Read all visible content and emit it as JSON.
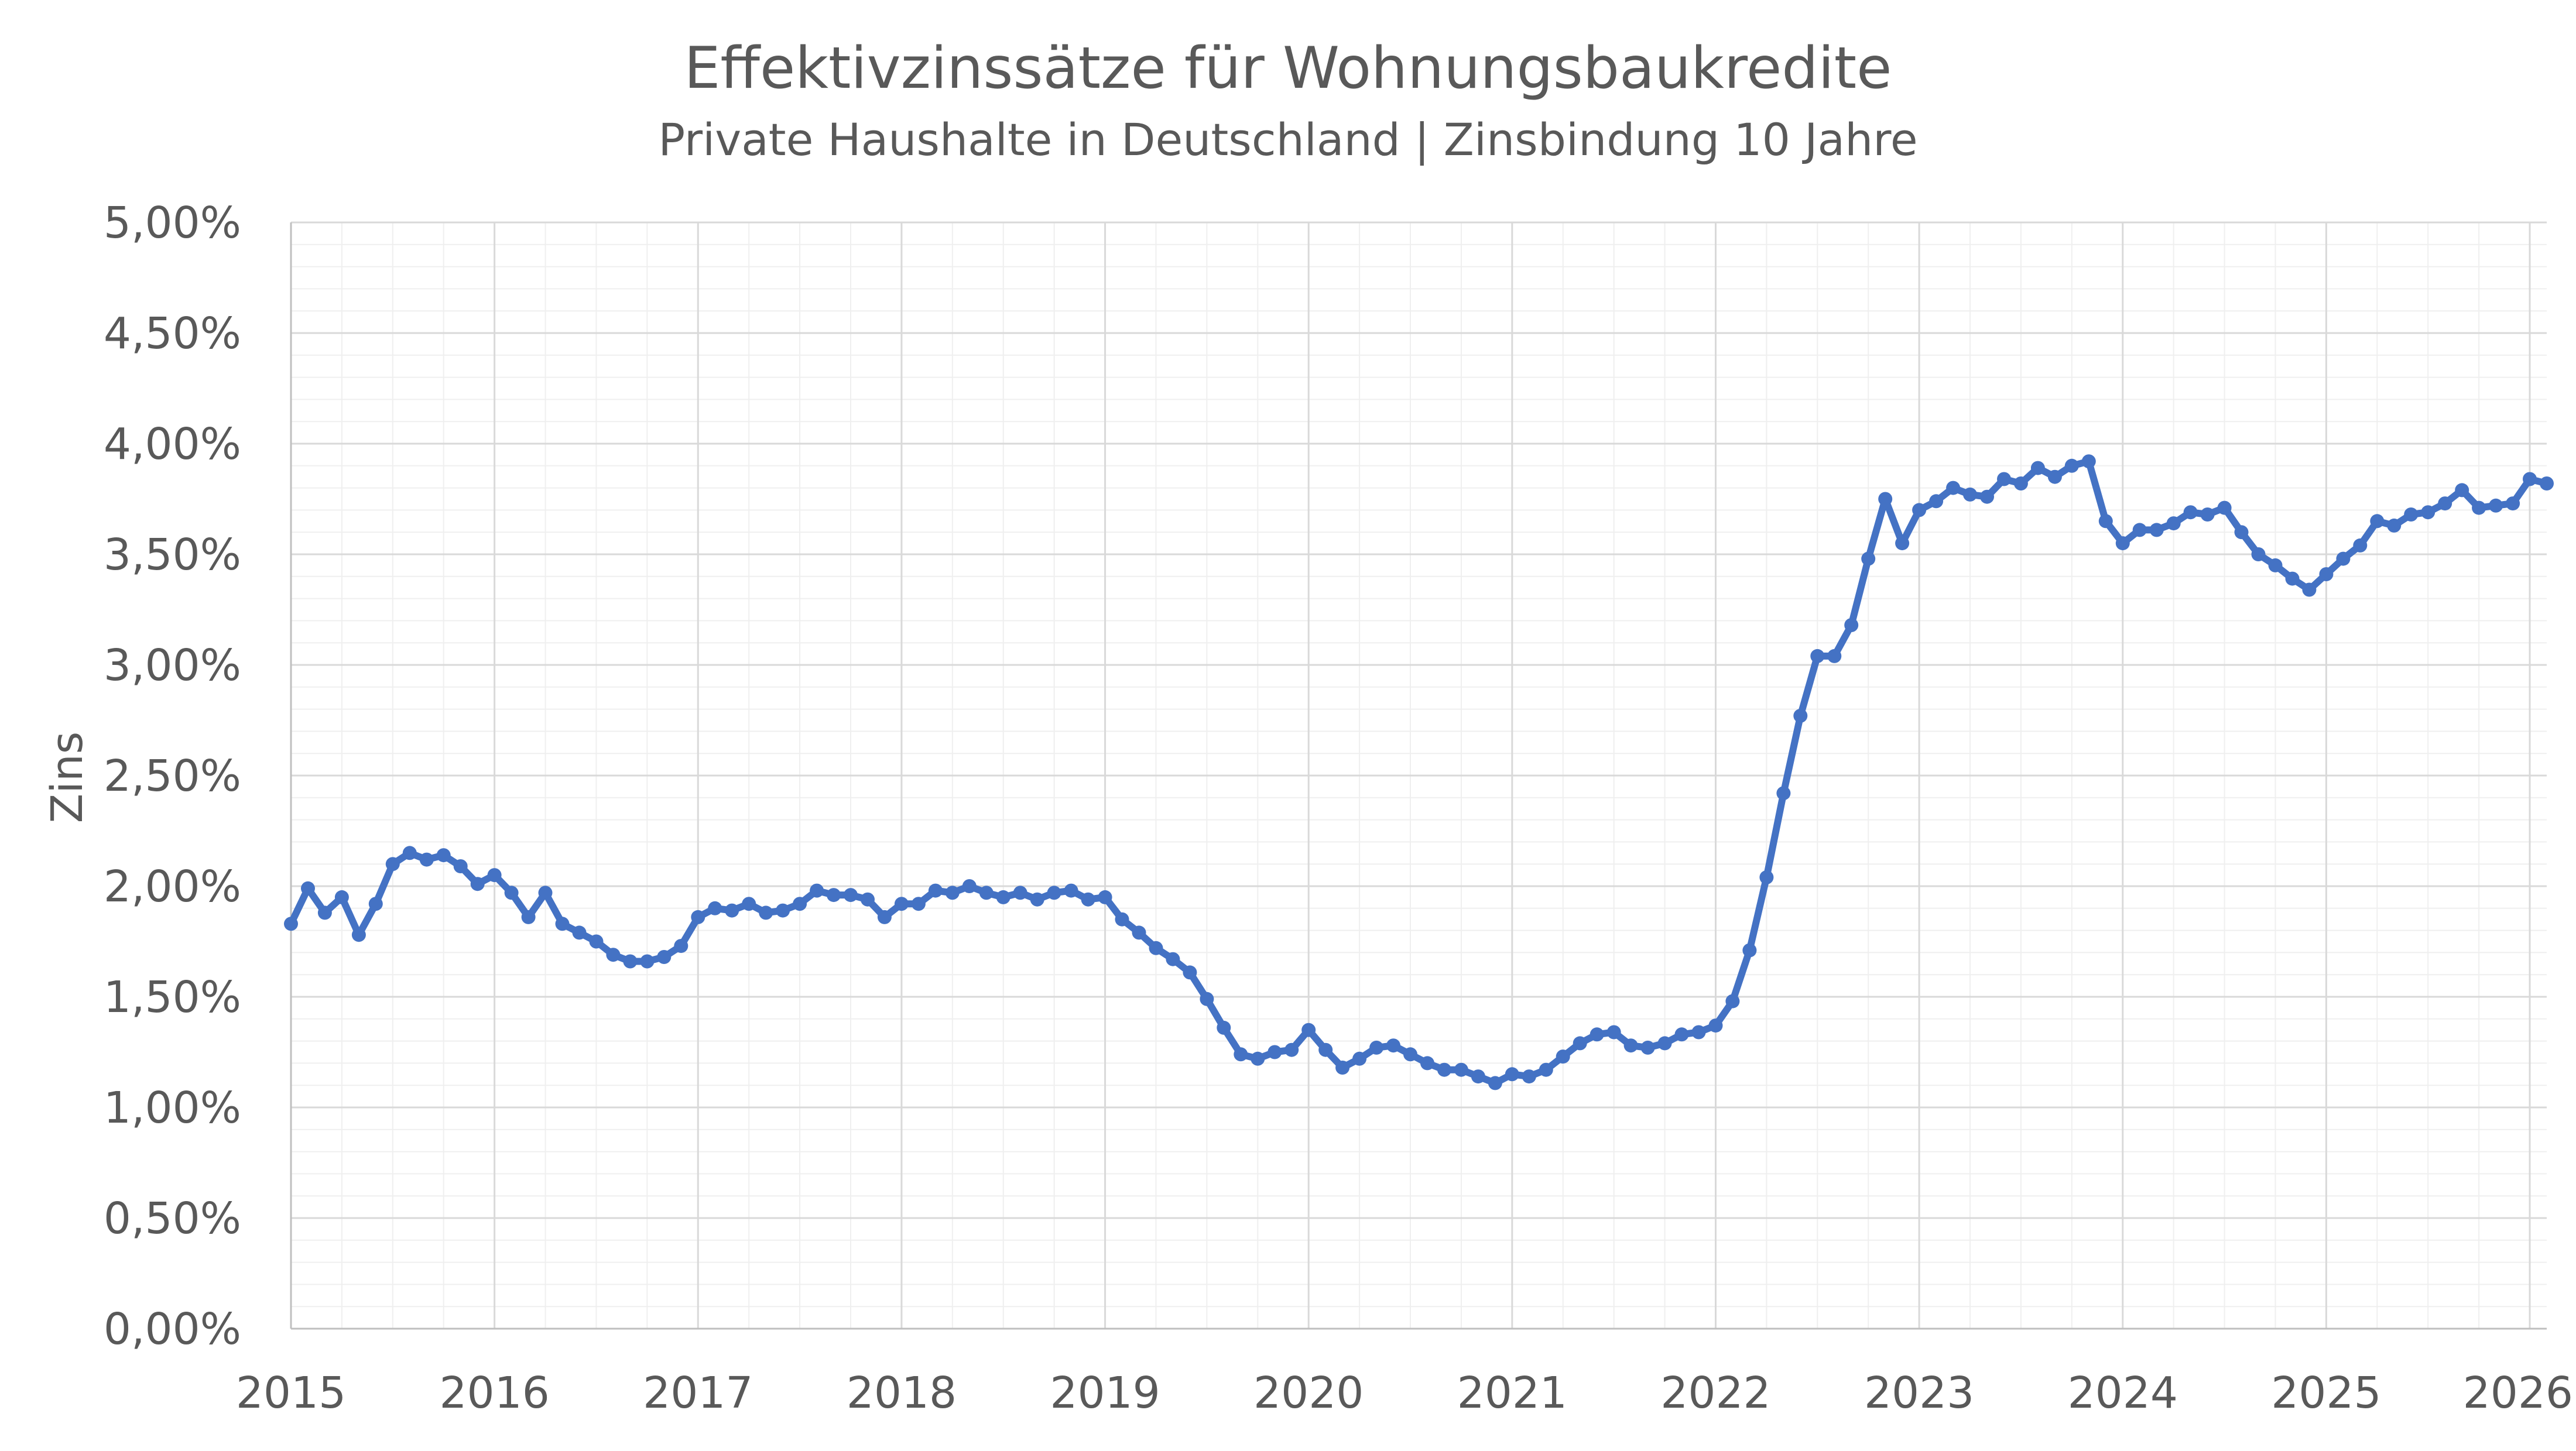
{
  "chart_data": {
    "type": "line",
    "title": "Effektivzinssätze für Wohnungsbaukredite",
    "subtitle": "Private Haushalte in Deutschland | Zinsbindung 10 Jahre",
    "xlabel": "",
    "ylabel": "Zins",
    "x_tick_labels": [
      "2015",
      "2016",
      "2017",
      "2018",
      "2019",
      "2020",
      "2021",
      "2022",
      "2023",
      "2024",
      "2025",
      "2026"
    ],
    "y_tick_labels": [
      "0,00%",
      "0,50%",
      "1,00%",
      "1,50%",
      "2,00%",
      "2,50%",
      "3,00%",
      "3,50%",
      "4,00%",
      "4,50%",
      "5,00%"
    ],
    "xlim": [
      "2015-01",
      "2026-02"
    ],
    "ylim": [
      0,
      5
    ],
    "grid": "major and minor",
    "legend": "none",
    "series_color": "#4472C4",
    "series": [
      {
        "values": [
          {
            "x": "2015-01",
            "y": 1.83
          },
          {
            "x": "2015-02",
            "y": 1.99
          },
          {
            "x": "2015-03",
            "y": 1.88
          },
          {
            "x": "2015-04",
            "y": 1.95
          },
          {
            "x": "2015-05",
            "y": 1.78
          },
          {
            "x": "2015-06",
            "y": 1.92
          },
          {
            "x": "2015-07",
            "y": 2.1
          },
          {
            "x": "2015-08",
            "y": 2.15
          },
          {
            "x": "2015-09",
            "y": 2.12
          },
          {
            "x": "2015-10",
            "y": 2.14
          },
          {
            "x": "2015-11",
            "y": 2.09
          },
          {
            "x": "2015-12",
            "y": 2.01
          },
          {
            "x": "2016-01",
            "y": 2.05
          },
          {
            "x": "2016-02",
            "y": 1.97
          },
          {
            "x": "2016-03",
            "y": 1.86
          },
          {
            "x": "2016-04",
            "y": 1.97
          },
          {
            "x": "2016-05",
            "y": 1.83
          },
          {
            "x": "2016-06",
            "y": 1.79
          },
          {
            "x": "2016-07",
            "y": 1.75
          },
          {
            "x": "2016-08",
            "y": 1.69
          },
          {
            "x": "2016-09",
            "y": 1.66
          },
          {
            "x": "2016-10",
            "y": 1.66
          },
          {
            "x": "2016-11",
            "y": 1.68
          },
          {
            "x": "2016-12",
            "y": 1.73
          },
          {
            "x": "2017-01",
            "y": 1.86
          },
          {
            "x": "2017-02",
            "y": 1.9
          },
          {
            "x": "2017-03",
            "y": 1.89
          },
          {
            "x": "2017-04",
            "y": 1.92
          },
          {
            "x": "2017-05",
            "y": 1.88
          },
          {
            "x": "2017-06",
            "y": 1.89
          },
          {
            "x": "2017-07",
            "y": 1.92
          },
          {
            "x": "2017-08",
            "y": 1.98
          },
          {
            "x": "2017-09",
            "y": 1.96
          },
          {
            "x": "2017-10",
            "y": 1.96
          },
          {
            "x": "2017-11",
            "y": 1.94
          },
          {
            "x": "2017-12",
            "y": 1.86
          },
          {
            "x": "2018-01",
            "y": 1.92
          },
          {
            "x": "2018-02",
            "y": 1.92
          },
          {
            "x": "2018-03",
            "y": 1.98
          },
          {
            "x": "2018-04",
            "y": 1.97
          },
          {
            "x": "2018-05",
            "y": 2.0
          },
          {
            "x": "2018-06",
            "y": 1.97
          },
          {
            "x": "2018-07",
            "y": 1.95
          },
          {
            "x": "2018-08",
            "y": 1.97
          },
          {
            "x": "2018-09",
            "y": 1.94
          },
          {
            "x": "2018-10",
            "y": 1.97
          },
          {
            "x": "2018-11",
            "y": 1.98
          },
          {
            "x": "2018-12",
            "y": 1.94
          },
          {
            "x": "2019-01",
            "y": 1.95
          },
          {
            "x": "2019-02",
            "y": 1.85
          },
          {
            "x": "2019-03",
            "y": 1.79
          },
          {
            "x": "2019-04",
            "y": 1.72
          },
          {
            "x": "2019-05",
            "y": 1.67
          },
          {
            "x": "2019-06",
            "y": 1.61
          },
          {
            "x": "2019-07",
            "y": 1.49
          },
          {
            "x": "2019-08",
            "y": 1.36
          },
          {
            "x": "2019-09",
            "y": 1.24
          },
          {
            "x": "2019-10",
            "y": 1.22
          },
          {
            "x": "2019-11",
            "y": 1.25
          },
          {
            "x": "2019-12",
            "y": 1.26
          },
          {
            "x": "2020-01",
            "y": 1.35
          },
          {
            "x": "2020-02",
            "y": 1.26
          },
          {
            "x": "2020-03",
            "y": 1.18
          },
          {
            "x": "2020-04",
            "y": 1.22
          },
          {
            "x": "2020-05",
            "y": 1.27
          },
          {
            "x": "2020-06",
            "y": 1.28
          },
          {
            "x": "2020-07",
            "y": 1.24
          },
          {
            "x": "2020-08",
            "y": 1.2
          },
          {
            "x": "2020-09",
            "y": 1.17
          },
          {
            "x": "2020-10",
            "y": 1.17
          },
          {
            "x": "2020-11",
            "y": 1.14
          },
          {
            "x": "2020-12",
            "y": 1.11
          },
          {
            "x": "2021-01",
            "y": 1.15
          },
          {
            "x": "2021-02",
            "y": 1.14
          },
          {
            "x": "2021-03",
            "y": 1.17
          },
          {
            "x": "2021-04",
            "y": 1.23
          },
          {
            "x": "2021-05",
            "y": 1.29
          },
          {
            "x": "2021-06",
            "y": 1.33
          },
          {
            "x": "2021-07",
            "y": 1.34
          },
          {
            "x": "2021-08",
            "y": 1.28
          },
          {
            "x": "2021-09",
            "y": 1.27
          },
          {
            "x": "2021-10",
            "y": 1.29
          },
          {
            "x": "2021-11",
            "y": 1.33
          },
          {
            "x": "2021-12",
            "y": 1.34
          },
          {
            "x": "2022-01",
            "y": 1.37
          },
          {
            "x": "2022-02",
            "y": 1.48
          },
          {
            "x": "2022-03",
            "y": 1.71
          },
          {
            "x": "2022-04",
            "y": 2.04
          },
          {
            "x": "2022-05",
            "y": 2.42
          },
          {
            "x": "2022-06",
            "y": 2.77
          },
          {
            "x": "2022-07",
            "y": 3.04
          },
          {
            "x": "2022-08",
            "y": 3.04
          },
          {
            "x": "2022-09",
            "y": 3.18
          },
          {
            "x": "2022-10",
            "y": 3.48
          },
          {
            "x": "2022-11",
            "y": 3.75
          },
          {
            "x": "2022-12",
            "y": 3.55
          },
          {
            "x": "2023-01",
            "y": 3.7
          },
          {
            "x": "2023-02",
            "y": 3.74
          },
          {
            "x": "2023-03",
            "y": 3.8
          },
          {
            "x": "2023-04",
            "y": 3.77
          },
          {
            "x": "2023-05",
            "y": 3.76
          },
          {
            "x": "2023-06",
            "y": 3.84
          },
          {
            "x": "2023-07",
            "y": 3.82
          },
          {
            "x": "2023-08",
            "y": 3.89
          },
          {
            "x": "2023-09",
            "y": 3.85
          },
          {
            "x": "2023-10",
            "y": 3.9
          },
          {
            "x": "2023-11",
            "y": 3.92
          },
          {
            "x": "2023-12",
            "y": 3.65
          },
          {
            "x": "2024-01",
            "y": 3.55
          },
          {
            "x": "2024-02",
            "y": 3.61
          },
          {
            "x": "2024-03",
            "y": 3.61
          },
          {
            "x": "2024-04",
            "y": 3.64
          },
          {
            "x": "2024-05",
            "y": 3.69
          },
          {
            "x": "2024-06",
            "y": 3.68
          },
          {
            "x": "2024-07",
            "y": 3.71
          },
          {
            "x": "2024-08",
            "y": 3.6
          },
          {
            "x": "2024-09",
            "y": 3.5
          },
          {
            "x": "2024-10",
            "y": 3.45
          },
          {
            "x": "2024-11",
            "y": 3.39
          },
          {
            "x": "2024-12",
            "y": 3.34
          },
          {
            "x": "2025-01",
            "y": 3.41
          },
          {
            "x": "2025-02",
            "y": 3.48
          },
          {
            "x": "2025-03",
            "y": 3.54
          },
          {
            "x": "2025-04",
            "y": 3.65
          },
          {
            "x": "2025-05",
            "y": 3.63
          },
          {
            "x": "2025-06",
            "y": 3.68
          },
          {
            "x": "2025-07",
            "y": 3.69
          },
          {
            "x": "2025-08",
            "y": 3.73
          },
          {
            "x": "2025-09",
            "y": 3.79
          },
          {
            "x": "2025-10",
            "y": 3.71
          },
          {
            "x": "2025-11",
            "y": 3.72
          },
          {
            "x": "2025-12",
            "y": 3.73
          },
          {
            "x": "2026-01",
            "y": 3.84
          },
          {
            "x": "2026-02",
            "y": 3.82
          }
        ]
      }
    ]
  }
}
